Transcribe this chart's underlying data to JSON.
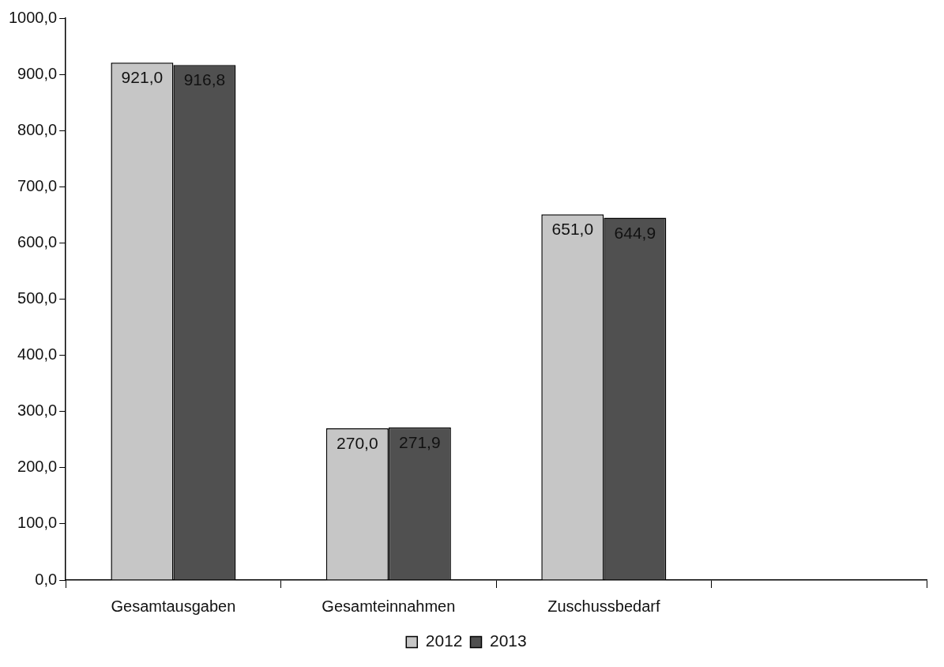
{
  "chart_data": {
    "type": "bar",
    "categories": [
      "Gesamtausgaben",
      "Gesamteinnahmen",
      "Zuschussbedarf",
      null
    ],
    "series": [
      {
        "name": "2012",
        "color": "#c6c6c6",
        "values": [
          921.0,
          270.0,
          651.0,
          null
        ],
        "value_labels": [
          "921,0",
          "270,0",
          "651,0",
          null
        ]
      },
      {
        "name": "2013",
        "color": "#505050",
        "values": [
          916.8,
          271.9,
          644.9,
          null
        ],
        "value_labels": [
          "916,8",
          "271,9",
          "644,9",
          null
        ]
      }
    ],
    "ylim": [
      0,
      1000
    ],
    "yticks": [
      {
        "value": 0,
        "label": "0,0"
      },
      {
        "value": 100,
        "label": "100,0"
      },
      {
        "value": 200,
        "label": "200,0"
      },
      {
        "value": 300,
        "label": "300,0"
      },
      {
        "value": 400,
        "label": "400,0"
      },
      {
        "value": 500,
        "label": "500,0"
      },
      {
        "value": 600,
        "label": "600,0"
      },
      {
        "value": 700,
        "label": "700,0"
      },
      {
        "value": 800,
        "label": "800,0"
      },
      {
        "value": 900,
        "label": "900,0"
      },
      {
        "value": 1000,
        "label": "1000,0"
      }
    ],
    "grid": false,
    "legend": "bottom"
  }
}
